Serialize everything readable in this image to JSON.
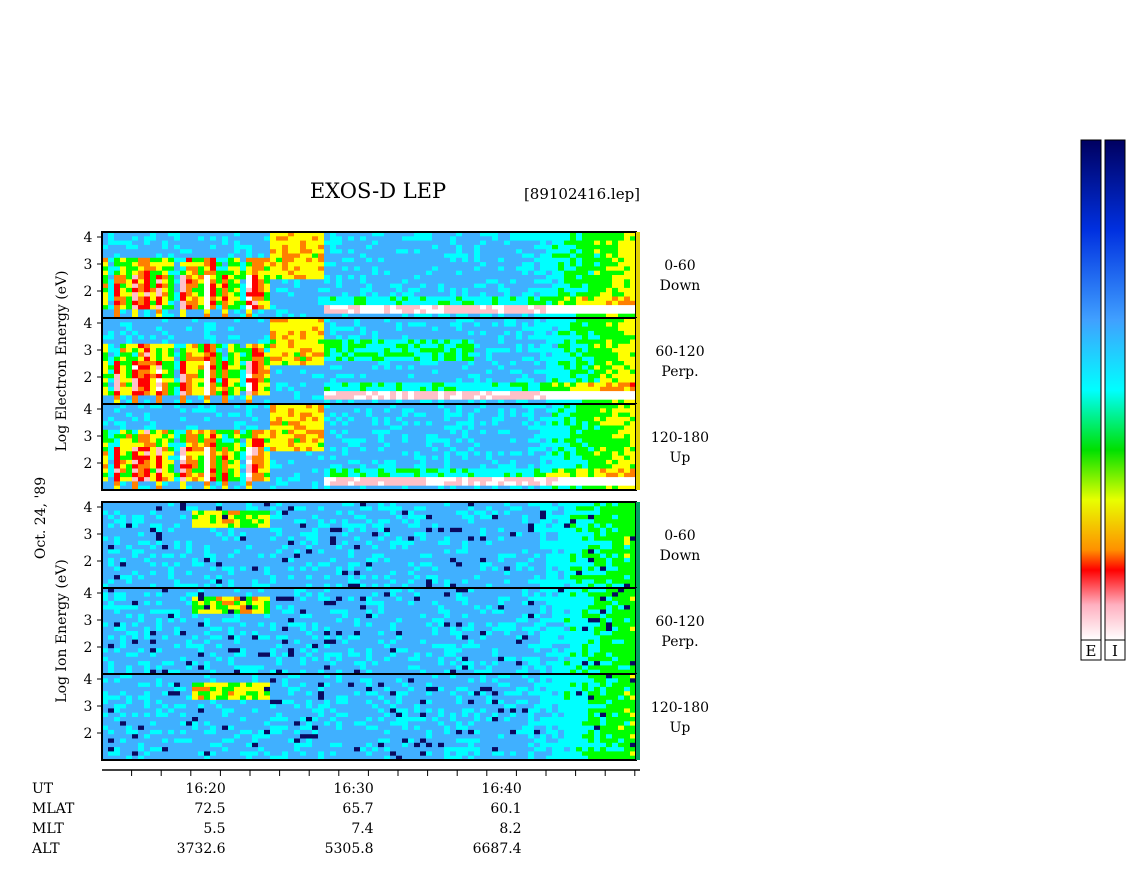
{
  "title": "EXOS-D LEP",
  "file_tag": "[89102416.lep]",
  "date_label": "Oct. 24, '89",
  "colorbar_labels": [
    "E",
    "I"
  ],
  "chart_data": {
    "type": "heatmap",
    "title": "EXOS-D LEP",
    "x_axis": {
      "label": "UT",
      "tick_labels": [
        "16:20",
        "16:30",
        "16:40"
      ],
      "minor_tick_count": 18,
      "ephemeris": [
        {
          "label": "UT",
          "values": [
            "16:20",
            "16:30",
            "16:40"
          ]
        },
        {
          "label": "MLAT",
          "values": [
            "72.5",
            "65.7",
            "60.1"
          ]
        },
        {
          "label": "MLT",
          "values": [
            "5.5",
            "7.4",
            "8.2"
          ]
        },
        {
          "label": "ALT",
          "values": [
            "3732.6",
            "5305.8",
            "6687.4"
          ]
        }
      ]
    },
    "groups": [
      {
        "ylabel": "Log   Electron   Energy (eV)",
        "panels": [
          {
            "pitch": "0-60",
            "dir": "Down",
            "yticks": [
              "4",
              "3",
              "2"
            ]
          },
          {
            "pitch": "60-120",
            "dir": "Perp.",
            "yticks": [
              "4",
              "3",
              "2"
            ]
          },
          {
            "pitch": "120-180",
            "dir": "Up",
            "yticks": [
              "4",
              "3",
              "2"
            ]
          }
        ]
      },
      {
        "ylabel": "Log   Ion   Energy (eV)",
        "panels": [
          {
            "pitch": "0-60",
            "dir": "Down",
            "yticks": [
              "4",
              "3",
              "2"
            ]
          },
          {
            "pitch": "60-120",
            "dir": "Perp.",
            "yticks": [
              "4",
              "3",
              "2"
            ]
          },
          {
            "pitch": "120-180",
            "dir": "Up",
            "yticks": [
              "4",
              "3",
              "2"
            ]
          }
        ]
      }
    ],
    "ylim": [
      1,
      4.2
    ],
    "colormap": [
      "#0a0a60",
      "#1030d0",
      "#40b0ff",
      "#00ffff",
      "#00ff00",
      "#ffff00",
      "#ff8000",
      "#ff0000",
      "#ffc0c8",
      "#ffffff"
    ]
  }
}
